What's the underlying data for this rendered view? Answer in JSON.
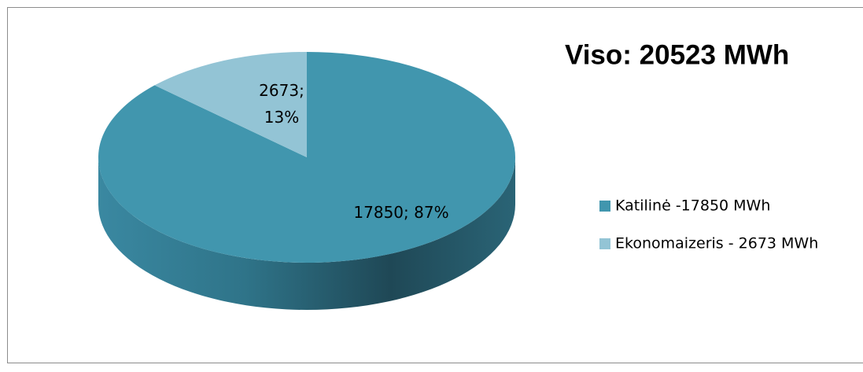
{
  "chart_data": {
    "type": "pie3d",
    "title": "Viso: 20523 MWh",
    "categories": [
      "Katilinė -17850 MWh",
      "Ekonomaizeris - 2673 MWh"
    ],
    "values": [
      17850,
      2673
    ],
    "value_labels": [
      "17850; 87%",
      "2673; 13%"
    ],
    "colors": [
      "#4196ae",
      "#93c4d5"
    ],
    "legend": "right"
  }
}
